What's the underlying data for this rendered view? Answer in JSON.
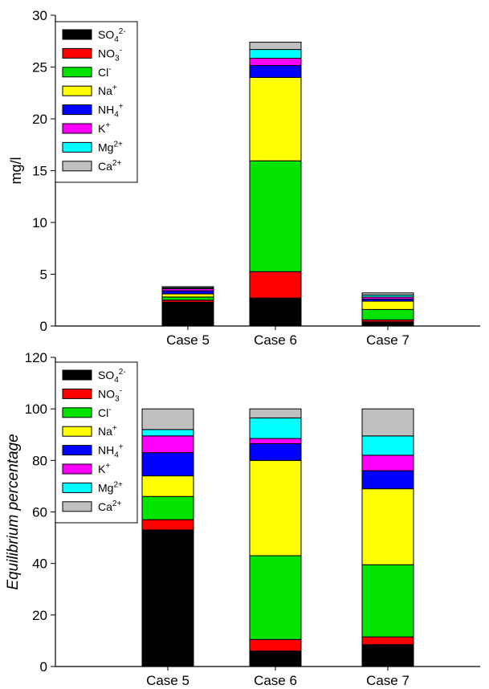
{
  "chart_data": [
    {
      "type": "bar",
      "stacked": true,
      "categories": [
        "Case 5",
        "Case 6",
        "Case 7"
      ],
      "ylabel": "mg/l",
      "ylabel_italic": false,
      "ylim": [
        0,
        30
      ],
      "yticks": [
        0,
        5,
        10,
        15,
        20,
        25,
        30
      ],
      "legend_position": "top-left",
      "series": [
        {
          "name": "SO",
          "sub": "4",
          "sup": "2-",
          "color": "#000000",
          "values": [
            2.3,
            2.7,
            0.4
          ]
        },
        {
          "name": "NO",
          "sub": "3",
          "sup": "-",
          "color": "#ff0000",
          "values": [
            0.2,
            2.55,
            0.2
          ]
        },
        {
          "name": "Cl",
          "sub": "",
          "sup": "-",
          "color": "#00e400",
          "values": [
            0.3,
            10.7,
            1.0
          ]
        },
        {
          "name": "Na",
          "sub": "",
          "sup": "+",
          "color": "#ffff00",
          "values": [
            0.3,
            8.05,
            0.8
          ]
        },
        {
          "name": "NH",
          "sub": "4",
          "sup": "+",
          "color": "#0000ff",
          "values": [
            0.3,
            1.15,
            0.2
          ]
        },
        {
          "name": "K",
          "sub": "",
          "sup": "+",
          "color": "#ff00ff",
          "values": [
            0.2,
            0.7,
            0.2
          ]
        },
        {
          "name": "Mg",
          "sub": "",
          "sup": "2+",
          "color": "#00ffff",
          "values": [
            0.1,
            0.85,
            0.2
          ]
        },
        {
          "name": "Ca",
          "sub": "",
          "sup": "2+",
          "color": "#c0c0c0",
          "values": [
            0.1,
            0.7,
            0.2
          ]
        }
      ]
    },
    {
      "type": "bar",
      "stacked": true,
      "categories": [
        "Case 5",
        "Case 6",
        "Case 7"
      ],
      "ylabel": "Equilibrium percentage",
      "ylabel_italic": true,
      "ylim": [
        0,
        120
      ],
      "yticks": [
        0,
        20,
        40,
        60,
        80,
        100,
        120
      ],
      "legend_position": "top-left",
      "series": [
        {
          "name": "SO",
          "sub": "4",
          "sup": "2-",
          "color": "#000000",
          "values": [
            53,
            6,
            8.5
          ]
        },
        {
          "name": "NO",
          "sub": "3",
          "sup": "-",
          "color": "#ff0000",
          "values": [
            4,
            4.5,
            3
          ]
        },
        {
          "name": "Cl",
          "sub": "",
          "sup": "-",
          "color": "#00e400",
          "values": [
            9,
            32.5,
            28
          ]
        },
        {
          "name": "Na",
          "sub": "",
          "sup": "+",
          "color": "#ffff00",
          "values": [
            8,
            37,
            29.5
          ]
        },
        {
          "name": "NH",
          "sub": "4",
          "sup": "+",
          "color": "#0000ff",
          "values": [
            9,
            6.5,
            7
          ]
        },
        {
          "name": "K",
          "sub": "",
          "sup": "+",
          "color": "#ff00ff",
          "values": [
            6.5,
            2,
            6
          ]
        },
        {
          "name": "Mg",
          "sub": "",
          "sup": "2+",
          "color": "#00ffff",
          "values": [
            2.5,
            8,
            7.5
          ]
        },
        {
          "name": "Ca",
          "sub": "",
          "sup": "2+",
          "color": "#c0c0c0",
          "values": [
            8,
            3.5,
            10.5
          ]
        }
      ]
    }
  ]
}
